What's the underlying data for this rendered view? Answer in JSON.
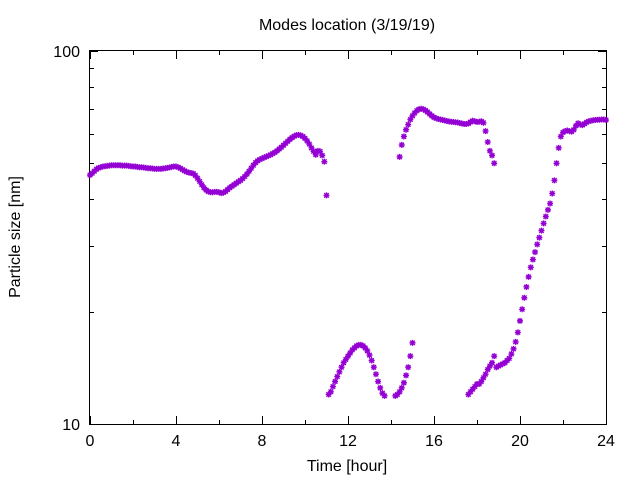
{
  "chart_data": {
    "type": "scatter",
    "title": "Modes location (3/19/19)",
    "xlabel": "Time [hour]",
    "ylabel": "Particle size [nm]",
    "xlim": [
      0,
      24
    ],
    "ylim": [
      10,
      100
    ],
    "yscale": "log",
    "xticks": [
      0,
      4,
      8,
      12,
      16,
      20,
      24
    ],
    "xtick_labels": [
      "0",
      "4",
      "8",
      "12",
      "16",
      "20",
      "24"
    ],
    "yticks": [
      10,
      100
    ],
    "ytick_labels": [
      "10",
      "100"
    ],
    "grid": false,
    "legend": "none",
    "marker_color": "#9400d3",
    "series": [
      {
        "points": [
          [
            0.0,
            46.5
          ],
          [
            0.1,
            47.0
          ],
          [
            0.2,
            47.6
          ],
          [
            0.3,
            48.2
          ],
          [
            0.4,
            48.6
          ],
          [
            0.5,
            48.8
          ],
          [
            0.6,
            49.0
          ],
          [
            0.7,
            49.1
          ],
          [
            0.8,
            49.2
          ],
          [
            0.9,
            49.3
          ],
          [
            1.0,
            49.4
          ],
          [
            1.1,
            49.4
          ],
          [
            1.2,
            49.4
          ],
          [
            1.3,
            49.4
          ],
          [
            1.4,
            49.4
          ],
          [
            1.5,
            49.3
          ],
          [
            1.6,
            49.3
          ],
          [
            1.7,
            49.3
          ],
          [
            1.8,
            49.2
          ],
          [
            1.9,
            49.1
          ],
          [
            2.0,
            49.0
          ],
          [
            2.1,
            49.0
          ],
          [
            2.2,
            48.9
          ],
          [
            2.3,
            48.8
          ],
          [
            2.4,
            48.8
          ],
          [
            2.5,
            48.7
          ],
          [
            2.6,
            48.6
          ],
          [
            2.7,
            48.5
          ],
          [
            2.8,
            48.5
          ],
          [
            2.9,
            48.4
          ],
          [
            3.0,
            48.3
          ],
          [
            3.1,
            48.3
          ],
          [
            3.2,
            48.3
          ],
          [
            3.3,
            48.3
          ],
          [
            3.4,
            48.4
          ],
          [
            3.5,
            48.5
          ],
          [
            3.6,
            48.6
          ],
          [
            3.7,
            48.7
          ],
          [
            3.8,
            48.9
          ],
          [
            3.9,
            49.0
          ],
          [
            4.0,
            49.0
          ],
          [
            4.1,
            48.8
          ],
          [
            4.2,
            48.5
          ],
          [
            4.3,
            48.1
          ],
          [
            4.4,
            47.7
          ],
          [
            4.5,
            47.4
          ],
          [
            4.6,
            47.2
          ],
          [
            4.7,
            47.1
          ],
          [
            4.8,
            46.9
          ],
          [
            4.9,
            46.4
          ],
          [
            5.0,
            45.6
          ],
          [
            5.1,
            44.7
          ],
          [
            5.2,
            43.8
          ],
          [
            5.3,
            43.0
          ],
          [
            5.4,
            42.4
          ],
          [
            5.5,
            42.0
          ],
          [
            5.6,
            41.8
          ],
          [
            5.7,
            41.8
          ],
          [
            5.8,
            41.9
          ],
          [
            5.9,
            41.9
          ],
          [
            6.0,
            41.8
          ],
          [
            6.1,
            41.6
          ],
          [
            6.2,
            41.7
          ],
          [
            6.3,
            42.0
          ],
          [
            6.4,
            42.5
          ],
          [
            6.5,
            43.0
          ],
          [
            6.6,
            43.4
          ],
          [
            6.7,
            43.8
          ],
          [
            6.8,
            44.2
          ],
          [
            6.9,
            44.6
          ],
          [
            7.0,
            45.0
          ],
          [
            7.1,
            45.5
          ],
          [
            7.2,
            46.1
          ],
          [
            7.3,
            46.8
          ],
          [
            7.4,
            47.6
          ],
          [
            7.5,
            48.5
          ],
          [
            7.6,
            49.4
          ],
          [
            7.7,
            50.2
          ],
          [
            7.8,
            50.8
          ],
          [
            7.9,
            51.2
          ],
          [
            8.0,
            51.5
          ],
          [
            8.1,
            51.8
          ],
          [
            8.2,
            52.1
          ],
          [
            8.3,
            52.4
          ],
          [
            8.4,
            52.7
          ],
          [
            8.5,
            53.1
          ],
          [
            8.6,
            53.5
          ],
          [
            8.7,
            54.0
          ],
          [
            8.8,
            54.6
          ],
          [
            8.9,
            55.2
          ],
          [
            9.0,
            55.9
          ],
          [
            9.1,
            56.6
          ],
          [
            9.2,
            57.3
          ],
          [
            9.3,
            58.0
          ],
          [
            9.4,
            58.6
          ],
          [
            9.5,
            59.1
          ],
          [
            9.6,
            59.5
          ],
          [
            9.7,
            59.6
          ],
          [
            9.8,
            59.4
          ],
          [
            9.9,
            59.0
          ],
          [
            10.0,
            58.3
          ],
          [
            10.1,
            57.4
          ],
          [
            10.2,
            56.3
          ],
          [
            10.3,
            55.0
          ],
          [
            10.4,
            53.8
          ],
          [
            10.5,
            52.7
          ],
          [
            10.6,
            54.0
          ],
          [
            10.7,
            53.8
          ],
          [
            10.8,
            52.5
          ],
          [
            10.9,
            50.5
          ],
          [
            11.0,
            41.0
          ],
          [
            11.1,
            12.0
          ],
          [
            11.2,
            12.2
          ],
          [
            11.3,
            12.6
          ],
          [
            11.4,
            13.0
          ],
          [
            11.5,
            13.4
          ],
          [
            11.6,
            13.8
          ],
          [
            11.7,
            14.2
          ],
          [
            11.8,
            14.6
          ],
          [
            11.9,
            14.9
          ],
          [
            12.0,
            15.2
          ],
          [
            12.1,
            15.5
          ],
          [
            12.2,
            15.8
          ],
          [
            12.3,
            16.0
          ],
          [
            12.4,
            16.2
          ],
          [
            12.5,
            16.3
          ],
          [
            12.6,
            16.3
          ],
          [
            12.7,
            16.2
          ],
          [
            12.8,
            16.0
          ],
          [
            12.9,
            15.7
          ],
          [
            13.0,
            15.3
          ],
          [
            13.1,
            14.8
          ],
          [
            13.2,
            14.2
          ],
          [
            13.3,
            13.6
          ],
          [
            13.4,
            13.0
          ],
          [
            13.5,
            12.5
          ],
          [
            13.6,
            12.1
          ],
          [
            13.7,
            11.9
          ],
          [
            14.2,
            11.9
          ],
          [
            14.3,
            12.0
          ],
          [
            14.4,
            12.2
          ],
          [
            14.5,
            12.5
          ],
          [
            14.6,
            12.9
          ],
          [
            14.7,
            13.5
          ],
          [
            14.8,
            14.2
          ],
          [
            14.9,
            15.2
          ],
          [
            15.0,
            16.5
          ],
          [
            14.4,
            52.0
          ],
          [
            14.5,
            56.0
          ],
          [
            14.6,
            59.0
          ],
          [
            14.7,
            61.5
          ],
          [
            14.8,
            63.5
          ],
          [
            14.9,
            65.5
          ],
          [
            15.0,
            67.0
          ],
          [
            15.1,
            68.2
          ],
          [
            15.2,
            69.2
          ],
          [
            15.3,
            69.8
          ],
          [
            15.4,
            70.0
          ],
          [
            15.5,
            69.8
          ],
          [
            15.6,
            69.3
          ],
          [
            15.7,
            68.6
          ],
          [
            15.8,
            67.8
          ],
          [
            15.9,
            67.0
          ],
          [
            16.0,
            66.4
          ],
          [
            16.1,
            66.0
          ],
          [
            16.2,
            65.7
          ],
          [
            16.3,
            65.5
          ],
          [
            16.4,
            65.3
          ],
          [
            16.5,
            65.1
          ],
          [
            16.6,
            64.9
          ],
          [
            16.7,
            64.7
          ],
          [
            16.8,
            64.6
          ],
          [
            16.9,
            64.5
          ],
          [
            17.0,
            64.4
          ],
          [
            17.1,
            64.3
          ],
          [
            17.2,
            64.1
          ],
          [
            17.3,
            63.9
          ],
          [
            17.4,
            63.7
          ],
          [
            17.5,
            63.7
          ],
          [
            17.6,
            63.9
          ],
          [
            17.7,
            64.5
          ],
          [
            17.8,
            65.0
          ],
          [
            17.9,
            64.8
          ],
          [
            18.0,
            64.5
          ],
          [
            18.1,
            64.6
          ],
          [
            18.2,
            64.8
          ],
          [
            18.3,
            64.2
          ],
          [
            18.4,
            61.0
          ],
          [
            18.5,
            57.0
          ],
          [
            18.6,
            54.0
          ],
          [
            18.7,
            52.5
          ],
          [
            18.8,
            50.0
          ],
          [
            17.6,
            12.0
          ],
          [
            17.7,
            12.2
          ],
          [
            17.8,
            12.4
          ],
          [
            17.9,
            12.6
          ],
          [
            18.0,
            12.8
          ],
          [
            18.1,
            12.8
          ],
          [
            18.2,
            13.0
          ],
          [
            18.3,
            13.3
          ],
          [
            18.4,
            13.6
          ],
          [
            18.5,
            14.0
          ],
          [
            18.6,
            14.3
          ],
          [
            18.7,
            14.6
          ],
          [
            18.8,
            15.2
          ],
          [
            18.9,
            14.2
          ],
          [
            19.0,
            14.3
          ],
          [
            19.1,
            14.4
          ],
          [
            19.2,
            14.5
          ],
          [
            19.3,
            14.6
          ],
          [
            19.4,
            14.8
          ],
          [
            19.5,
            15.0
          ],
          [
            19.6,
            15.4
          ],
          [
            19.7,
            15.9
          ],
          [
            19.8,
            16.6
          ],
          [
            19.9,
            17.6
          ],
          [
            20.0,
            18.9
          ],
          [
            20.1,
            20.3
          ],
          [
            20.2,
            21.8
          ],
          [
            20.3,
            23.3
          ],
          [
            20.4,
            24.8
          ],
          [
            20.5,
            26.3
          ],
          [
            20.6,
            27.6
          ],
          [
            20.7,
            28.9
          ],
          [
            20.8,
            30.3
          ],
          [
            20.9,
            31.6
          ],
          [
            21.0,
            33.0
          ],
          [
            21.1,
            34.5
          ],
          [
            21.2,
            36.0
          ],
          [
            21.3,
            37.5
          ],
          [
            21.4,
            39.0
          ],
          [
            21.5,
            41.5
          ],
          [
            21.6,
            45.0
          ],
          [
            21.7,
            50.0
          ],
          [
            21.8,
            55.0
          ],
          [
            21.9,
            59.0
          ],
          [
            22.0,
            60.5
          ],
          [
            22.1,
            61.0
          ],
          [
            22.2,
            61.2
          ],
          [
            22.3,
            61.0
          ],
          [
            22.4,
            60.8
          ],
          [
            22.5,
            61.5
          ],
          [
            22.6,
            63.0
          ],
          [
            22.7,
            64.0
          ],
          [
            22.8,
            63.5
          ],
          [
            22.9,
            63.3
          ],
          [
            23.0,
            63.8
          ],
          [
            23.1,
            64.4
          ],
          [
            23.2,
            64.8
          ],
          [
            23.3,
            65.0
          ],
          [
            23.4,
            65.2
          ],
          [
            23.5,
            65.3
          ],
          [
            23.6,
            65.4
          ],
          [
            23.7,
            65.4
          ],
          [
            23.8,
            65.5
          ],
          [
            23.9,
            65.5
          ],
          [
            24.0,
            65.3
          ]
        ]
      }
    ]
  }
}
